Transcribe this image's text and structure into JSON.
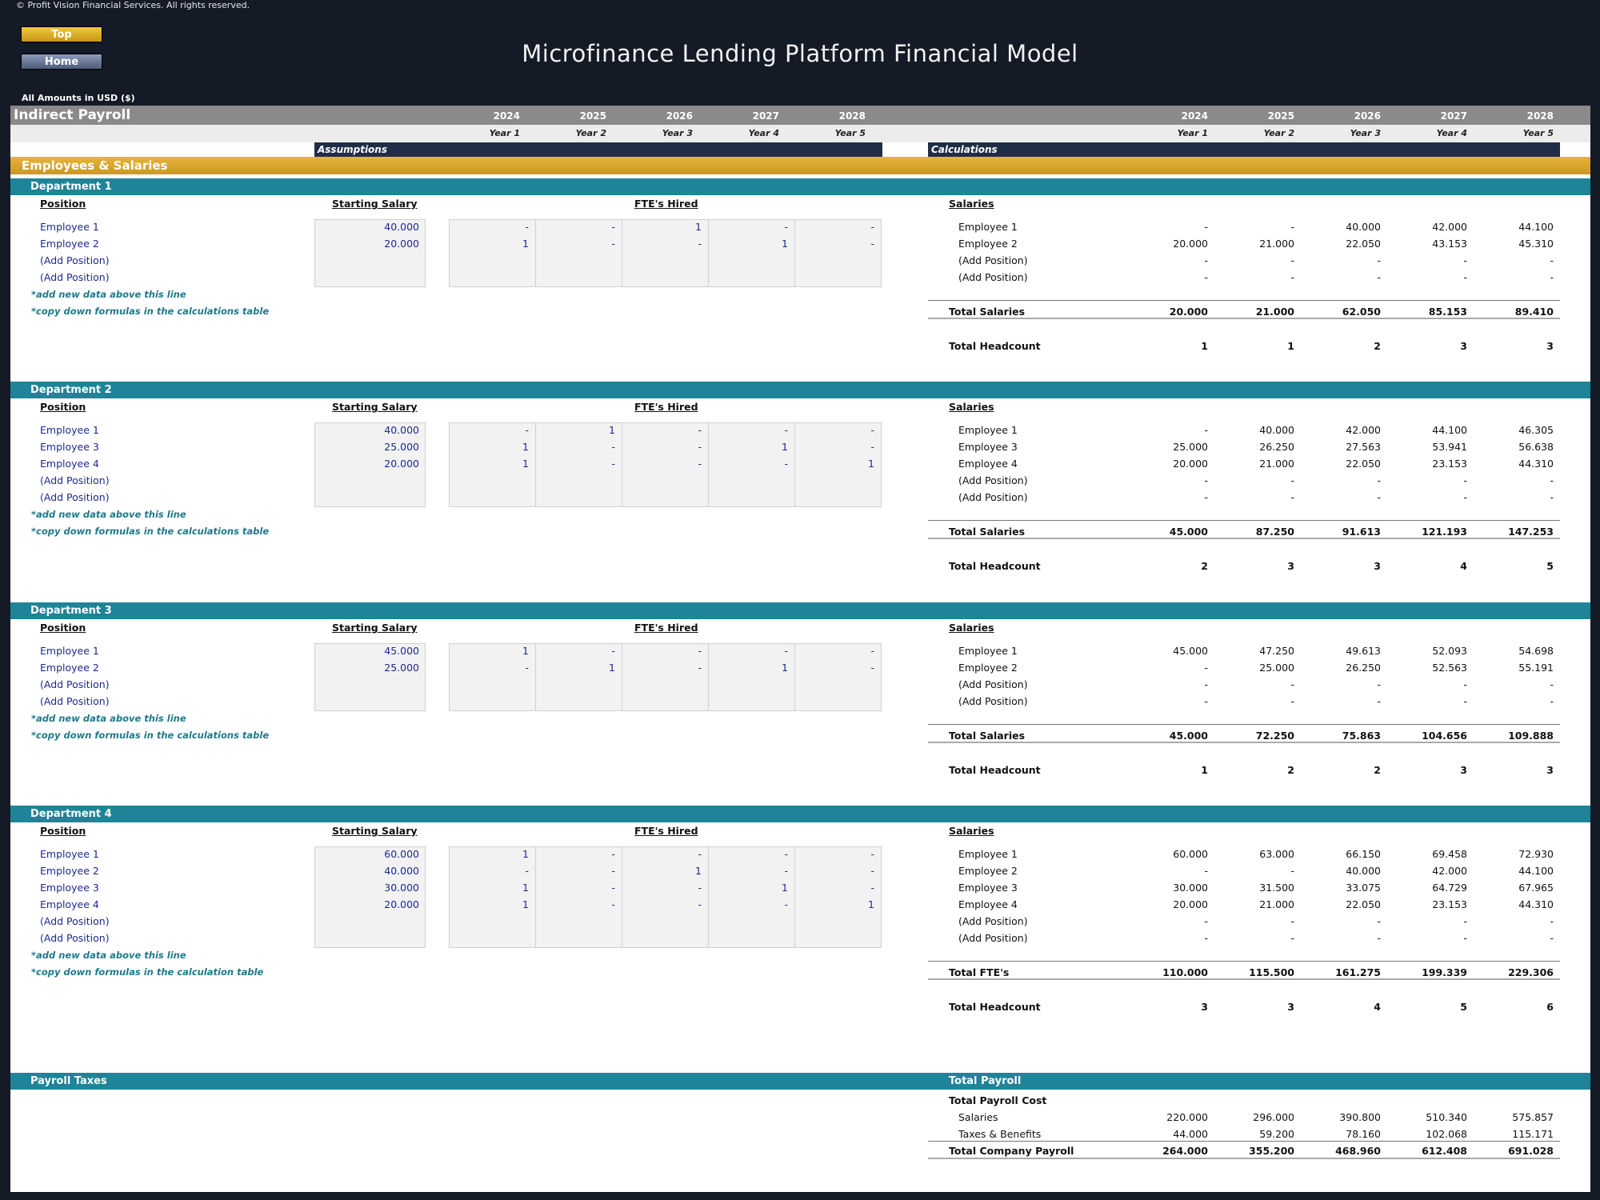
{
  "copyright": "© Profit Vision Financial Services. All rights reserved.",
  "buttons": {
    "top": "Top",
    "home": "Home"
  },
  "title": "Microfinance Lending Platform Financial Model",
  "amounts_note": "All Amounts in  USD ($)",
  "sheet_title": "Indirect Payroll",
  "years": [
    "2024",
    "2025",
    "2026",
    "2027",
    "2028"
  ],
  "year_labels": [
    "Year 1",
    "Year 2",
    "Year 3",
    "Year 4",
    "Year 5"
  ],
  "assumptions_label": "Assumptions",
  "calculations_label": "Calculations",
  "section_title": "Employees & Salaries",
  "col_heads": {
    "position": "Position",
    "starting_salary": "Starting Salary",
    "ftes_hired": "FTE's Hired",
    "salaries": "Salaries"
  },
  "departments": [
    {
      "name": "Department 1",
      "rows": [
        {
          "label": "Employee 1",
          "salary": "40.000",
          "fte": [
            "-",
            "-",
            "1",
            "-",
            "-"
          ],
          "sal": [
            "-",
            "-",
            "40.000",
            "42.000",
            "44.100"
          ]
        },
        {
          "label": "Employee 2",
          "salary": "20.000",
          "fte": [
            "1",
            "-",
            "-",
            "1",
            "-"
          ],
          "sal": [
            "20.000",
            "21.000",
            "22.050",
            "43.153",
            "45.310"
          ]
        },
        {
          "label": "(Add Position)",
          "salary": "",
          "fte": [
            "",
            "",
            "",
            "",
            ""
          ],
          "sal": [
            "-",
            "-",
            "-",
            "-",
            "-"
          ]
        },
        {
          "label": "(Add Position)",
          "salary": "",
          "fte": [
            "",
            "",
            "",
            "",
            ""
          ],
          "sal": [
            "-",
            "-",
            "-",
            "-",
            "-"
          ]
        }
      ],
      "note1": "*add new data above this line",
      "note2": "*copy down formulas in the calculations table",
      "total_label": "Total Salaries",
      "totals": [
        "20.000",
        "21.000",
        "62.050",
        "85.153",
        "89.410"
      ],
      "headcount_label": "Total Headcount",
      "headcount": [
        "1",
        "1",
        "2",
        "3",
        "3"
      ]
    },
    {
      "name": "Department 2",
      "rows": [
        {
          "label": "Employee 1",
          "salary": "40.000",
          "fte": [
            "-",
            "1",
            "-",
            "-",
            "-"
          ],
          "sal": [
            "-",
            "40.000",
            "42.000",
            "44.100",
            "46.305"
          ]
        },
        {
          "label": "Employee 3",
          "salary": "25.000",
          "fte": [
            "1",
            "-",
            "-",
            "1",
            "-"
          ],
          "sal": [
            "25.000",
            "26.250",
            "27.563",
            "53.941",
            "56.638"
          ]
        },
        {
          "label": "Employee 4",
          "salary": "20.000",
          "fte": [
            "1",
            "-",
            "-",
            "-",
            "1"
          ],
          "sal": [
            "20.000",
            "21.000",
            "22.050",
            "23.153",
            "44.310"
          ]
        },
        {
          "label": "(Add Position)",
          "salary": "",
          "fte": [
            "",
            "",
            "",
            "",
            ""
          ],
          "sal": [
            "-",
            "-",
            "-",
            "-",
            "-"
          ]
        },
        {
          "label": "(Add Position)",
          "salary": "",
          "fte": [
            "",
            "",
            "",
            "",
            ""
          ],
          "sal": [
            "-",
            "-",
            "-",
            "-",
            "-"
          ]
        }
      ],
      "note1": "*add new data above this line",
      "note2": "*copy down formulas in the calculations table",
      "total_label": "Total Salaries",
      "totals": [
        "45.000",
        "87.250",
        "91.613",
        "121.193",
        "147.253"
      ],
      "headcount_label": "Total Headcount",
      "headcount": [
        "2",
        "3",
        "3",
        "4",
        "5"
      ]
    },
    {
      "name": "Department 3",
      "rows": [
        {
          "label": "Employee 1",
          "salary": "45.000",
          "fte": [
            "1",
            "-",
            "-",
            "-",
            "-"
          ],
          "sal": [
            "45.000",
            "47.250",
            "49.613",
            "52.093",
            "54.698"
          ]
        },
        {
          "label": "Employee 2",
          "salary": "25.000",
          "fte": [
            "-",
            "1",
            "-",
            "1",
            "-"
          ],
          "sal": [
            "-",
            "25.000",
            "26.250",
            "52.563",
            "55.191"
          ]
        },
        {
          "label": "(Add Position)",
          "salary": "",
          "fte": [
            "",
            "",
            "",
            "",
            ""
          ],
          "sal": [
            "-",
            "-",
            "-",
            "-",
            "-"
          ]
        },
        {
          "label": "(Add Position)",
          "salary": "",
          "fte": [
            "",
            "",
            "",
            "",
            ""
          ],
          "sal": [
            "-",
            "-",
            "-",
            "-",
            "-"
          ]
        }
      ],
      "note1": "*add new data above this line",
      "note2": "*copy down formulas in the calculations table",
      "total_label": "Total Salaries",
      "totals": [
        "45.000",
        "72.250",
        "75.863",
        "104.656",
        "109.888"
      ],
      "headcount_label": "Total Headcount",
      "headcount": [
        "1",
        "2",
        "2",
        "3",
        "3"
      ]
    },
    {
      "name": "Department 4",
      "rows": [
        {
          "label": "Employee 1",
          "salary": "60.000",
          "fte": [
            "1",
            "-",
            "-",
            "-",
            "-"
          ],
          "sal": [
            "60.000",
            "63.000",
            "66.150",
            "69.458",
            "72.930"
          ]
        },
        {
          "label": "Employee 2",
          "salary": "40.000",
          "fte": [
            "-",
            "-",
            "1",
            "-",
            "-"
          ],
          "sal": [
            "-",
            "-",
            "40.000",
            "42.000",
            "44.100"
          ]
        },
        {
          "label": "Employee 3",
          "salary": "30.000",
          "fte": [
            "1",
            "-",
            "-",
            "1",
            "-"
          ],
          "sal": [
            "30.000",
            "31.500",
            "33.075",
            "64.729",
            "67.965"
          ]
        },
        {
          "label": "Employee 4",
          "salary": "20.000",
          "fte": [
            "1",
            "-",
            "-",
            "-",
            "1"
          ],
          "sal": [
            "20.000",
            "21.000",
            "22.050",
            "23.153",
            "44.310"
          ]
        },
        {
          "label": "(Add Position)",
          "salary": "",
          "fte": [
            "",
            "",
            "",
            "",
            ""
          ],
          "sal": [
            "-",
            "-",
            "-",
            "-",
            "-"
          ]
        },
        {
          "label": "(Add Position)",
          "salary": "",
          "fte": [
            "",
            "",
            "",
            "",
            ""
          ],
          "sal": [
            "-",
            "-",
            "-",
            "-",
            "-"
          ]
        }
      ],
      "note1": "*add new data above this line",
      "note2": "*copy down formulas in the calculation table",
      "total_label": "Total FTE's",
      "totals": [
        "110.000",
        "115.500",
        "161.275",
        "199.339",
        "229.306"
      ],
      "headcount_label": "Total Headcount",
      "headcount": [
        "3",
        "3",
        "4",
        "5",
        "6"
      ]
    }
  ],
  "payroll_taxes_label": "Payroll Taxes",
  "total_payroll": {
    "header": "Total Payroll",
    "cost_label": "Total Payroll Cost",
    "salaries_label": "Salaries",
    "salaries": [
      "220.000",
      "296.000",
      "390.800",
      "510.340",
      "575.857"
    ],
    "taxes_label": "Taxes & Benefits",
    "taxes": [
      "44.000",
      "59.200",
      "78.160",
      "102.068",
      "115.171"
    ],
    "company_label": "Total Company Payroll",
    "company": [
      "264.000",
      "355.200",
      "468.960",
      "612.408",
      "691.028"
    ]
  },
  "colors": {
    "teal": "#1f8497",
    "gold": "#d9a630",
    "navy": "#1f2d47",
    "grey_header": "#8a8a8a",
    "background": "#141a26"
  }
}
